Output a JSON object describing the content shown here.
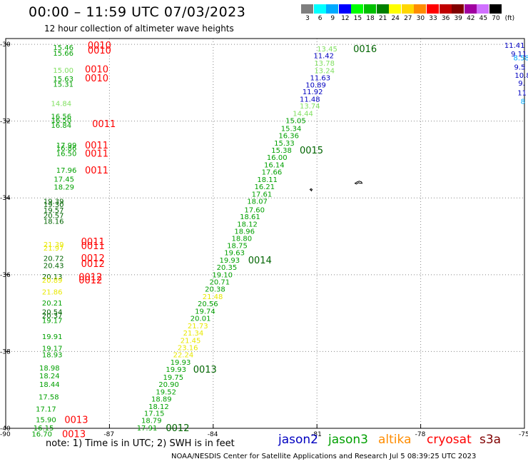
{
  "title": "00:00 – 11:59 UTC 07/03/2023",
  "subtitle": "12 hour collection of altimeter wave heights",
  "legend": {
    "unit": "(ft)",
    "items": [
      {
        "label": "3",
        "color": "#7f7f7f"
      },
      {
        "label": "6",
        "color": "#00ffff"
      },
      {
        "label": "9",
        "color": "#00aaff"
      },
      {
        "label": "12",
        "color": "#0000ff"
      },
      {
        "label": "15",
        "color": "#00ff00"
      },
      {
        "label": "18",
        "color": "#00c000"
      },
      {
        "label": "21",
        "color": "#008000"
      },
      {
        "label": "24",
        "color": "#ffff00"
      },
      {
        "label": "27",
        "color": "#ffd700"
      },
      {
        "label": "30",
        "color": "#ff8c00"
      },
      {
        "label": "33",
        "color": "#ff0000"
      },
      {
        "label": "36",
        "color": "#c00000"
      },
      {
        "label": "39",
        "color": "#800000"
      },
      {
        "label": "42",
        "color": "#a000a0"
      },
      {
        "label": "45",
        "color": "#d070ff"
      },
      {
        "label": "70",
        "color": "#000000"
      }
    ]
  },
  "axes": {
    "lat_ticks": [
      "-30",
      "-32",
      "-34",
      "-36",
      "-38",
      "-40"
    ],
    "lon_ticks": [
      "-90",
      "-87",
      "-84",
      "-81",
      "-78",
      "-75"
    ]
  },
  "colors": {
    "light": "#80e060",
    "green": "#00a000",
    "dark": "#006400",
    "yellow": "#e8e800",
    "blue": "#0000c0",
    "cyan": "#00aaff",
    "red": "#ff0000"
  },
  "labels": [
    {
      "t": "15.46",
      "lat": -30.07,
      "lon": -88.63,
      "c": "green"
    },
    {
      "t": "0010",
      "lat": -30.02,
      "lon": -87.63,
      "c": "red",
      "big": true
    },
    {
      "t": "15.66",
      "lat": -30.22,
      "lon": -88.63,
      "c": "green"
    },
    {
      "t": "0010",
      "lat": -30.15,
      "lon": -87.63,
      "c": "red",
      "big": true
    },
    {
      "t": "15.00",
      "lat": -30.67,
      "lon": -88.63,
      "c": "light"
    },
    {
      "t": "0010",
      "lat": -30.64,
      "lon": -87.71,
      "c": "red",
      "big": true
    },
    {
      "t": "15.63",
      "lat": -30.89,
      "lon": -88.63,
      "c": "green"
    },
    {
      "t": "0010",
      "lat": -30.87,
      "lon": -87.71,
      "c": "red",
      "big": true
    },
    {
      "t": "15.31",
      "lat": -31.03,
      "lon": -88.63,
      "c": "green"
    },
    {
      "t": "14.84",
      "lat": -31.53,
      "lon": -88.69,
      "c": "light"
    },
    {
      "t": "16.56",
      "lat": -31.87,
      "lon": -88.69,
      "c": "green"
    },
    {
      "t": "16.50",
      "lat": -31.97,
      "lon": -88.69,
      "c": "green"
    },
    {
      "t": "16.84",
      "lat": -32.1,
      "lon": -88.69,
      "c": "green"
    },
    {
      "t": "0011",
      "lat": -32.06,
      "lon": -87.5,
      "c": "red",
      "big": true
    },
    {
      "t": "17.99",
      "lat": -32.62,
      "lon": -88.54,
      "c": "green"
    },
    {
      "t": "16.86",
      "lat": -32.69,
      "lon": -88.54,
      "c": "green"
    },
    {
      "t": "0011",
      "lat": -32.62,
      "lon": -87.71,
      "c": "red",
      "big": true
    },
    {
      "t": "16.50",
      "lat": -32.83,
      "lon": -88.54,
      "c": "green"
    },
    {
      "t": "0011",
      "lat": -32.83,
      "lon": -87.71,
      "c": "red",
      "big": true
    },
    {
      "t": "17.96",
      "lat": -33.27,
      "lon": -88.54,
      "c": "green"
    },
    {
      "t": "0011",
      "lat": -33.27,
      "lon": -87.71,
      "c": "red",
      "big": true
    },
    {
      "t": "17.45",
      "lat": -33.5,
      "lon": -88.61,
      "c": "green"
    },
    {
      "t": "18.29",
      "lat": -33.71,
      "lon": -88.61,
      "c": "green"
    },
    {
      "t": "19.39",
      "lat": -34.08,
      "lon": -88.91,
      "c": "dark"
    },
    {
      "t": "19.30",
      "lat": -34.16,
      "lon": -88.91,
      "c": "dark"
    },
    {
      "t": "19.57",
      "lat": -34.31,
      "lon": -88.91,
      "c": "dark"
    },
    {
      "t": "20.57",
      "lat": -34.45,
      "lon": -88.91,
      "c": "dark"
    },
    {
      "t": "18.16",
      "lat": -34.6,
      "lon": -88.91,
      "c": "dark"
    },
    {
      "t": "21.39",
      "lat": -35.2,
      "lon": -88.91,
      "c": "yellow"
    },
    {
      "t": "0011",
      "lat": -35.13,
      "lon": -87.82,
      "c": "red",
      "big": true
    },
    {
      "t": "21.97",
      "lat": -35.3,
      "lon": -88.91,
      "c": "yellow"
    },
    {
      "t": "0011",
      "lat": -35.24,
      "lon": -87.82,
      "c": "red",
      "big": true
    },
    {
      "t": "20.72",
      "lat": -35.57,
      "lon": -88.91,
      "c": "dark"
    },
    {
      "t": "0012",
      "lat": -35.56,
      "lon": -87.82,
      "c": "red",
      "big": true
    },
    {
      "t": "20.43",
      "lat": -35.75,
      "lon": -88.91,
      "c": "dark"
    },
    {
      "t": "0012",
      "lat": -35.71,
      "lon": -87.82,
      "c": "red",
      "big": true
    },
    {
      "t": "20.13",
      "lat": -36.04,
      "lon": -88.95,
      "c": "dark"
    },
    {
      "t": "0012",
      "lat": -36.05,
      "lon": -87.89,
      "c": "red",
      "big": true
    },
    {
      "t": "20.89",
      "lat": -36.13,
      "lon": -88.95,
      "c": "yellow"
    },
    {
      "t": "0012",
      "lat": -36.13,
      "lon": -87.89,
      "c": "red",
      "big": true
    },
    {
      "t": "21.86",
      "lat": -36.44,
      "lon": -88.95,
      "c": "yellow"
    },
    {
      "t": "20.21",
      "lat": -36.73,
      "lon": -88.95,
      "c": "green"
    },
    {
      "t": "20.54",
      "lat": -36.96,
      "lon": -88.95,
      "c": "dark"
    },
    {
      "t": "20.37",
      "lat": -37.05,
      "lon": -88.95,
      "c": "dark"
    },
    {
      "t": "19.17",
      "lat": -37.18,
      "lon": -88.95,
      "c": "green"
    },
    {
      "t": "19.91",
      "lat": -37.6,
      "lon": -88.95,
      "c": "green"
    },
    {
      "t": "19.17",
      "lat": -37.91,
      "lon": -88.95,
      "c": "green"
    },
    {
      "t": "18.93",
      "lat": -38.08,
      "lon": -88.95,
      "c": "green"
    },
    {
      "t": "18.98",
      "lat": -38.42,
      "lon": -89.03,
      "c": "green"
    },
    {
      "t": "18.24",
      "lat": -38.62,
      "lon": -89.03,
      "c": "green"
    },
    {
      "t": "18.44",
      "lat": -38.85,
      "lon": -89.03,
      "c": "green"
    },
    {
      "t": "17.58",
      "lat": -39.17,
      "lon": -89.05,
      "c": "green"
    },
    {
      "t": "17.17",
      "lat": -39.49,
      "lon": -89.13,
      "c": "green"
    },
    {
      "t": "15.90",
      "lat": -39.77,
      "lon": -89.13,
      "c": "green"
    },
    {
      "t": "0013",
      "lat": -39.77,
      "lon": -88.3,
      "c": "red",
      "big": true
    },
    {
      "t": "16.15",
      "lat": -39.98,
      "lon": -89.2,
      "c": "green"
    },
    {
      "t": "16.70",
      "lat": -40.14,
      "lon": -89.25,
      "c": "green"
    },
    {
      "t": "0013",
      "lat": -40.14,
      "lon": -88.37,
      "c": "red",
      "big": true
    },
    {
      "t": "13.45",
      "lat": -30.11,
      "lon": -81.0,
      "c": "light"
    },
    {
      "t": "0016",
      "lat": -30.11,
      "lon": -79.95,
      "c": "dark",
      "big": true
    },
    {
      "t": "11.42",
      "lat": -30.29,
      "lon": -81.1,
      "c": "blue"
    },
    {
      "t": "13.78",
      "lat": -30.48,
      "lon": -81.08,
      "c": "light"
    },
    {
      "t": "13.24",
      "lat": -30.68,
      "lon": -81.08,
      "c": "light"
    },
    {
      "t": "11.63",
      "lat": -30.86,
      "lon": -81.2,
      "c": "blue"
    },
    {
      "t": "10.89",
      "lat": -31.05,
      "lon": -81.33,
      "c": "blue"
    },
    {
      "t": "11.92",
      "lat": -31.23,
      "lon": -81.42,
      "c": "blue"
    },
    {
      "t": "11.48",
      "lat": -31.42,
      "lon": -81.5,
      "c": "blue"
    },
    {
      "t": "13.74",
      "lat": -31.6,
      "lon": -81.5,
      "c": "light"
    },
    {
      "t": "14.44",
      "lat": -31.79,
      "lon": -81.7,
      "c": "light"
    },
    {
      "t": "15.05",
      "lat": -31.98,
      "lon": -81.91,
      "c": "green"
    },
    {
      "t": "15.34",
      "lat": -32.18,
      "lon": -82.04,
      "c": "green"
    },
    {
      "t": "16.36",
      "lat": -32.37,
      "lon": -82.11,
      "c": "green"
    },
    {
      "t": "15.33",
      "lat": -32.56,
      "lon": -82.24,
      "c": "green"
    },
    {
      "t": "15.38",
      "lat": -32.75,
      "lon": -82.32,
      "c": "green"
    },
    {
      "t": "0015",
      "lat": -32.75,
      "lon": -81.5,
      "c": "dark",
      "big": true
    },
    {
      "t": "16.00",
      "lat": -32.94,
      "lon": -82.45,
      "c": "green"
    },
    {
      "t": "16.14",
      "lat": -33.13,
      "lon": -82.53,
      "c": "green"
    },
    {
      "t": "17.66",
      "lat": -33.32,
      "lon": -82.6,
      "c": "green"
    },
    {
      "t": "18.11",
      "lat": -33.51,
      "lon": -82.73,
      "c": "green"
    },
    {
      "t": "16.21",
      "lat": -33.7,
      "lon": -82.81,
      "c": "green"
    },
    {
      "t": "17.61",
      "lat": -33.89,
      "lon": -82.89,
      "c": "green"
    },
    {
      "t": "18.07",
      "lat": -34.08,
      "lon": -83.02,
      "c": "green"
    },
    {
      "t": "17.60",
      "lat": -34.3,
      "lon": -83.1,
      "c": "green"
    },
    {
      "t": "18.61",
      "lat": -34.48,
      "lon": -83.23,
      "c": "green"
    },
    {
      "t": "18.12",
      "lat": -34.67,
      "lon": -83.31,
      "c": "green"
    },
    {
      "t": "18.96",
      "lat": -34.86,
      "lon": -83.39,
      "c": "green"
    },
    {
      "t": "18.80",
      "lat": -35.05,
      "lon": -83.47,
      "c": "green"
    },
    {
      "t": "18.75",
      "lat": -35.23,
      "lon": -83.6,
      "c": "green"
    },
    {
      "t": "19.63",
      "lat": -35.42,
      "lon": -83.68,
      "c": "green"
    },
    {
      "t": "19.93",
      "lat": -35.61,
      "lon": -83.82,
      "c": "green"
    },
    {
      "t": "0014",
      "lat": -35.61,
      "lon": -82.99,
      "c": "dark",
      "big": true
    },
    {
      "t": "20.35",
      "lat": -35.8,
      "lon": -83.9,
      "c": "green"
    },
    {
      "t": "19.10",
      "lat": -35.99,
      "lon": -84.03,
      "c": "green"
    },
    {
      "t": "20.71",
      "lat": -36.18,
      "lon": -84.11,
      "c": "green"
    },
    {
      "t": "20.38",
      "lat": -36.37,
      "lon": -84.24,
      "c": "green"
    },
    {
      "t": "21.48",
      "lat": -36.56,
      "lon": -84.31,
      "c": "yellow"
    },
    {
      "t": "20.56",
      "lat": -36.75,
      "lon": -84.45,
      "c": "green"
    },
    {
      "t": "19.74",
      "lat": -36.94,
      "lon": -84.53,
      "c": "green"
    },
    {
      "t": "20.01",
      "lat": -37.13,
      "lon": -84.66,
      "c": "green"
    },
    {
      "t": "21.73",
      "lat": -37.32,
      "lon": -84.74,
      "c": "yellow"
    },
    {
      "t": "21.34",
      "lat": -37.51,
      "lon": -84.87,
      "c": "yellow"
    },
    {
      "t": "21.45",
      "lat": -37.7,
      "lon": -84.95,
      "c": "yellow"
    },
    {
      "t": "23.16",
      "lat": -37.89,
      "lon": -85.03,
      "c": "yellow"
    },
    {
      "t": "22.24",
      "lat": -38.08,
      "lon": -85.16,
      "c": "yellow"
    },
    {
      "t": "19.93",
      "lat": -38.27,
      "lon": -85.24,
      "c": "green"
    },
    {
      "t": "19.93",
      "lat": -38.46,
      "lon": -85.37,
      "c": "green"
    },
    {
      "t": "0013",
      "lat": -38.46,
      "lon": -84.58,
      "c": "dark",
      "big": true
    },
    {
      "t": "19.75",
      "lat": -38.66,
      "lon": -85.45,
      "c": "green"
    },
    {
      "t": "20.90",
      "lat": -38.85,
      "lon": -85.58,
      "c": "green"
    },
    {
      "t": "19.52",
      "lat": -39.04,
      "lon": -85.66,
      "c": "green"
    },
    {
      "t": "18.89",
      "lat": -39.23,
      "lon": -85.79,
      "c": "green"
    },
    {
      "t": "18.12",
      "lat": -39.42,
      "lon": -85.87,
      "c": "green"
    },
    {
      "t": "17.15",
      "lat": -39.6,
      "lon": -86.0,
      "c": "green"
    },
    {
      "t": "18.79",
      "lat": -39.79,
      "lon": -86.08,
      "c": "green"
    },
    {
      "t": "17.91",
      "lat": -39.98,
      "lon": -86.21,
      "c": "green"
    },
    {
      "t": "0012",
      "lat": -39.98,
      "lon": -85.37,
      "c": "dark",
      "big": true
    },
    {
      "t": "11.41",
      "lat": -30.02,
      "lon": -75.58,
      "c": "blue"
    },
    {
      "t": "9.11",
      "lat": -30.24,
      "lon": -75.39,
      "c": "blue"
    },
    {
      "t": "8.58",
      "lat": -30.34,
      "lon": -75.32,
      "c": "cyan"
    },
    {
      "t": "9.5",
      "lat": -30.58,
      "lon": -75.3,
      "c": "blue"
    },
    {
      "t": "10.8",
      "lat": -30.8,
      "lon": -75.28,
      "c": "blue"
    },
    {
      "t": "9.",
      "lat": -31.0,
      "lon": -75.18,
      "c": "blue"
    },
    {
      "t": "11",
      "lat": -31.25,
      "lon": -75.2,
      "c": "blue"
    },
    {
      "t": "8",
      "lat": -31.48,
      "lon": -75.11,
      "c": "cyan"
    }
  ],
  "note": "note:  1) Time is in UTC;  2) SWH is in feet",
  "satellites": [
    {
      "name": "jason2",
      "color": "#0000c0"
    },
    {
      "name": "jason3",
      "color": "#00a000"
    },
    {
      "name": "altika",
      "color": "#ff8c00"
    },
    {
      "name": "cryosat",
      "color": "#ff0000"
    },
    {
      "name": "s3a",
      "color": "#800000"
    }
  ],
  "credit": "NOAA/NESDIS Center for Satellite Applications and Research    Jul  5 08:39:25 UTC 2023"
}
